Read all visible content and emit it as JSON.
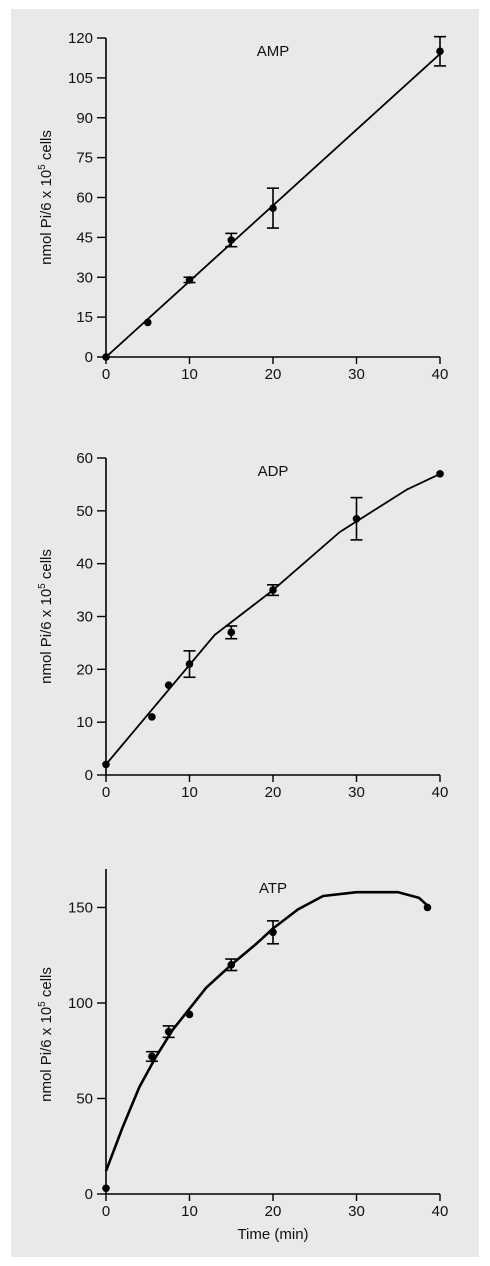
{
  "chart_data": [
    {
      "type": "line",
      "panel_label": "AMP",
      "ylabel": "nmol Pi/6 x 10^5 cells",
      "ylabel_parts": {
        "pre": "nmol Pi/6 x 10",
        "sup": "5",
        "post": " cells"
      },
      "xlabel": "",
      "xlim": [
        0,
        40
      ],
      "ylim": [
        0,
        120
      ],
      "x_ticks": [
        0,
        10,
        20,
        30,
        40
      ],
      "y_ticks": [
        0,
        15,
        30,
        45,
        60,
        75,
        90,
        105,
        120
      ],
      "points": [
        {
          "x": 0,
          "y": 0
        },
        {
          "x": 5,
          "y": 13
        },
        {
          "x": 10,
          "y": 29,
          "err": 1
        },
        {
          "x": 15,
          "y": 44,
          "err": 2.5
        },
        {
          "x": 20,
          "y": 56,
          "err": 7.5
        },
        {
          "x": 40,
          "y": 115,
          "err": 5.5
        }
      ],
      "fit_line": [
        {
          "x": 0,
          "y": 0
        },
        {
          "x": 40,
          "y": 114
        }
      ]
    },
    {
      "type": "line",
      "panel_label": "ADP",
      "ylabel": "nmol Pi/6 x 10^5 cells",
      "ylabel_parts": {
        "pre": "nmol Pi/6 x 10",
        "sup": "5",
        "post": " cells"
      },
      "xlabel": "",
      "xlim": [
        0,
        40
      ],
      "ylim": [
        0,
        60
      ],
      "x_ticks": [
        0,
        10,
        20,
        30,
        40
      ],
      "y_ticks": [
        0,
        10,
        20,
        30,
        40,
        50,
        60
      ],
      "points": [
        {
          "x": 0,
          "y": 2
        },
        {
          "x": 5.5,
          "y": 11
        },
        {
          "x": 7.5,
          "y": 17
        },
        {
          "x": 10,
          "y": 21,
          "err": 2.5
        },
        {
          "x": 15,
          "y": 27,
          "err": 1.2
        },
        {
          "x": 20,
          "y": 35,
          "err": 1
        },
        {
          "x": 30,
          "y": 48.5,
          "err": 4
        },
        {
          "x": 40,
          "y": 57
        }
      ],
      "fit_line": [
        {
          "x": 0,
          "y": 2
        },
        {
          "x": 13,
          "y": 26.5
        },
        {
          "x": 20,
          "y": 35
        },
        {
          "x": 28,
          "y": 46
        },
        {
          "x": 36,
          "y": 54
        },
        {
          "x": 40,
          "y": 57
        }
      ]
    },
    {
      "type": "line",
      "panel_label": "ATP",
      "ylabel": "nmol Pi/6 x 10^5 cells",
      "ylabel_parts": {
        "pre": "nmol Pi/6 x 10",
        "sup": "5",
        "post": " cells"
      },
      "xlabel": "Time (min)",
      "xlim": [
        0,
        40
      ],
      "ylim": [
        0,
        167
      ],
      "x_ticks": [
        0,
        10,
        20,
        30,
        40
      ],
      "y_ticks": [
        0,
        50,
        100,
        150
      ],
      "points": [
        {
          "x": 0,
          "y": 3
        },
        {
          "x": 5.5,
          "y": 72,
          "err": 2.5
        },
        {
          "x": 7.5,
          "y": 85,
          "err": 3
        },
        {
          "x": 10,
          "y": 94
        },
        {
          "x": 15,
          "y": 120,
          "err": 3
        },
        {
          "x": 20,
          "y": 137,
          "err": 6
        },
        {
          "x": 38.5,
          "y": 150
        }
      ],
      "fit_line": [
        {
          "x": 0,
          "y": 12
        },
        {
          "x": 2,
          "y": 35
        },
        {
          "x": 4,
          "y": 56
        },
        {
          "x": 6,
          "y": 72
        },
        {
          "x": 8,
          "y": 86
        },
        {
          "x": 10,
          "y": 97
        },
        {
          "x": 12,
          "y": 108
        },
        {
          "x": 15,
          "y": 120
        },
        {
          "x": 18,
          "y": 131
        },
        {
          "x": 20,
          "y": 139
        },
        {
          "x": 23,
          "y": 149
        },
        {
          "x": 26,
          "y": 156
        },
        {
          "x": 30,
          "y": 158
        },
        {
          "x": 35,
          "y": 158
        },
        {
          "x": 37.5,
          "y": 155
        },
        {
          "x": 38.5,
          "y": 151
        }
      ]
    }
  ]
}
